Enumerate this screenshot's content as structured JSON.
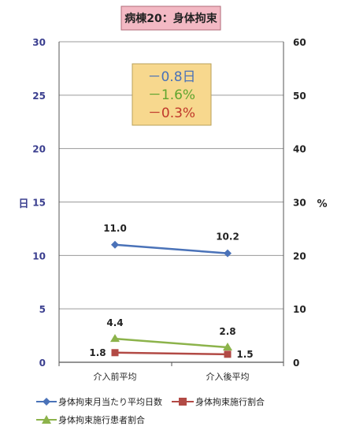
{
  "chart_data": {
    "type": "line",
    "title": "病棟20：身体拘束",
    "categories": [
      "介入前平均",
      "介入後平均"
    ],
    "y_left": {
      "label": "日",
      "ylim": [
        0,
        30
      ],
      "ticks": [
        0,
        5,
        10,
        15,
        20,
        25,
        30
      ]
    },
    "y_right": {
      "label": "%",
      "ylim": [
        0,
        60
      ],
      "ticks": [
        0,
        10,
        20,
        30,
        40,
        50,
        60
      ]
    },
    "grid": true,
    "legend_position": "bottom",
    "series": [
      {
        "name": "身体拘束月当たり平均日数",
        "axis": "left",
        "values": [
          11.0,
          10.2
        ],
        "labels": [
          "11.0",
          "10.2"
        ],
        "color": "#4a72b8",
        "marker": "diamond"
      },
      {
        "name": "身体拘束施行割合",
        "axis": "left",
        "values": [
          0.9,
          0.75
        ],
        "labels": [
          "1.8",
          "1.5"
        ],
        "color": "#b24a45",
        "marker": "square"
      },
      {
        "name": "身体拘束施行患者割合",
        "axis": "left",
        "values": [
          2.2,
          1.4
        ],
        "labels": [
          "4.4",
          "2.8"
        ],
        "color": "#8cb34b",
        "marker": "triangle"
      }
    ],
    "annotation": {
      "lines": [
        {
          "text": "－0.8日",
          "color": "#4a72b8"
        },
        {
          "text": "－1.6%",
          "color": "#5fa52f"
        },
        {
          "text": "－0.3%",
          "color": "#c0392b"
        }
      ],
      "background": "#f7d88e",
      "border": "#b9a15a"
    },
    "title_background": "#f3b9c4",
    "axis_text_color": "#3b3f8f"
  }
}
